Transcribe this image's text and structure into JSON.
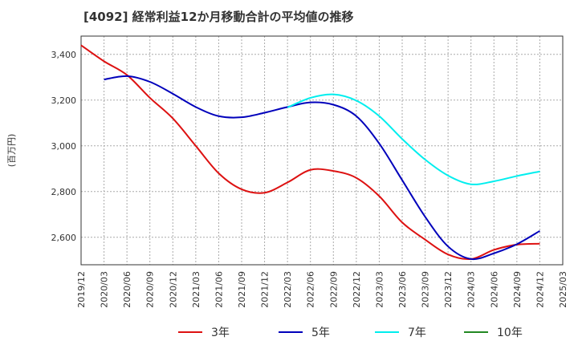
{
  "title": "[4092]  経常利益12か月移動合計の平均値の推移",
  "chart_data": {
    "type": "line",
    "ylabel": "(百万円)",
    "ylim": [
      2480,
      3480
    ],
    "yticks": [
      2600,
      2800,
      3000,
      3200,
      3400
    ],
    "ytick_labels": [
      "2,600",
      "2,800",
      "3,000",
      "3,200",
      "3,400"
    ],
    "xticks": [
      "2019/12",
      "2020/03",
      "2020/06",
      "2020/09",
      "2020/12",
      "2021/03",
      "2021/06",
      "2021/09",
      "2021/12",
      "2022/03",
      "2022/06",
      "2022/09",
      "2022/12",
      "2023/03",
      "2023/06",
      "2023/09",
      "2023/12",
      "2024/03",
      "2024/06",
      "2024/09",
      "2024/12",
      "2025/03"
    ],
    "grid": true,
    "legend_position": "bottom",
    "series": [
      {
        "name": "3年",
        "color": "#dd1111",
        "x": [
          "2019/12",
          "2020/03",
          "2020/06",
          "2020/09",
          "2020/12",
          "2021/03",
          "2021/06",
          "2021/09",
          "2021/12",
          "2022/03",
          "2022/06",
          "2022/09",
          "2022/12",
          "2023/03",
          "2023/06",
          "2023/09",
          "2023/12",
          "2024/03",
          "2024/06",
          "2024/09",
          "2024/12"
        ],
        "values": [
          3440,
          3370,
          3310,
          3210,
          3120,
          3000,
          2880,
          2810,
          2795,
          2840,
          2895,
          2890,
          2860,
          2780,
          2665,
          2590,
          2525,
          2505,
          2545,
          2568,
          2572
        ]
      },
      {
        "name": "5年",
        "color": "#0000bb",
        "x": [
          "2020/03",
          "2020/06",
          "2020/09",
          "2020/12",
          "2021/03",
          "2021/06",
          "2021/09",
          "2021/12",
          "2022/03",
          "2022/06",
          "2022/09",
          "2022/12",
          "2023/03",
          "2023/06",
          "2023/09",
          "2023/12",
          "2024/03",
          "2024/06",
          "2024/09",
          "2024/12"
        ],
        "values": [
          3290,
          3305,
          3280,
          3228,
          3170,
          3130,
          3125,
          3145,
          3170,
          3190,
          3180,
          3130,
          3010,
          2850,
          2690,
          2560,
          2505,
          2530,
          2570,
          2628
        ]
      },
      {
        "name": "7年",
        "color": "#00eeee",
        "x": [
          "2022/03",
          "2022/06",
          "2022/09",
          "2022/12",
          "2023/03",
          "2023/06",
          "2023/09",
          "2023/12",
          "2024/03",
          "2024/06",
          "2024/09",
          "2024/12"
        ],
        "values": [
          3168,
          3210,
          3225,
          3198,
          3130,
          3030,
          2940,
          2870,
          2832,
          2845,
          2868,
          2888
        ]
      },
      {
        "name": "10年",
        "color": "#228822",
        "x": [],
        "values": []
      }
    ]
  }
}
